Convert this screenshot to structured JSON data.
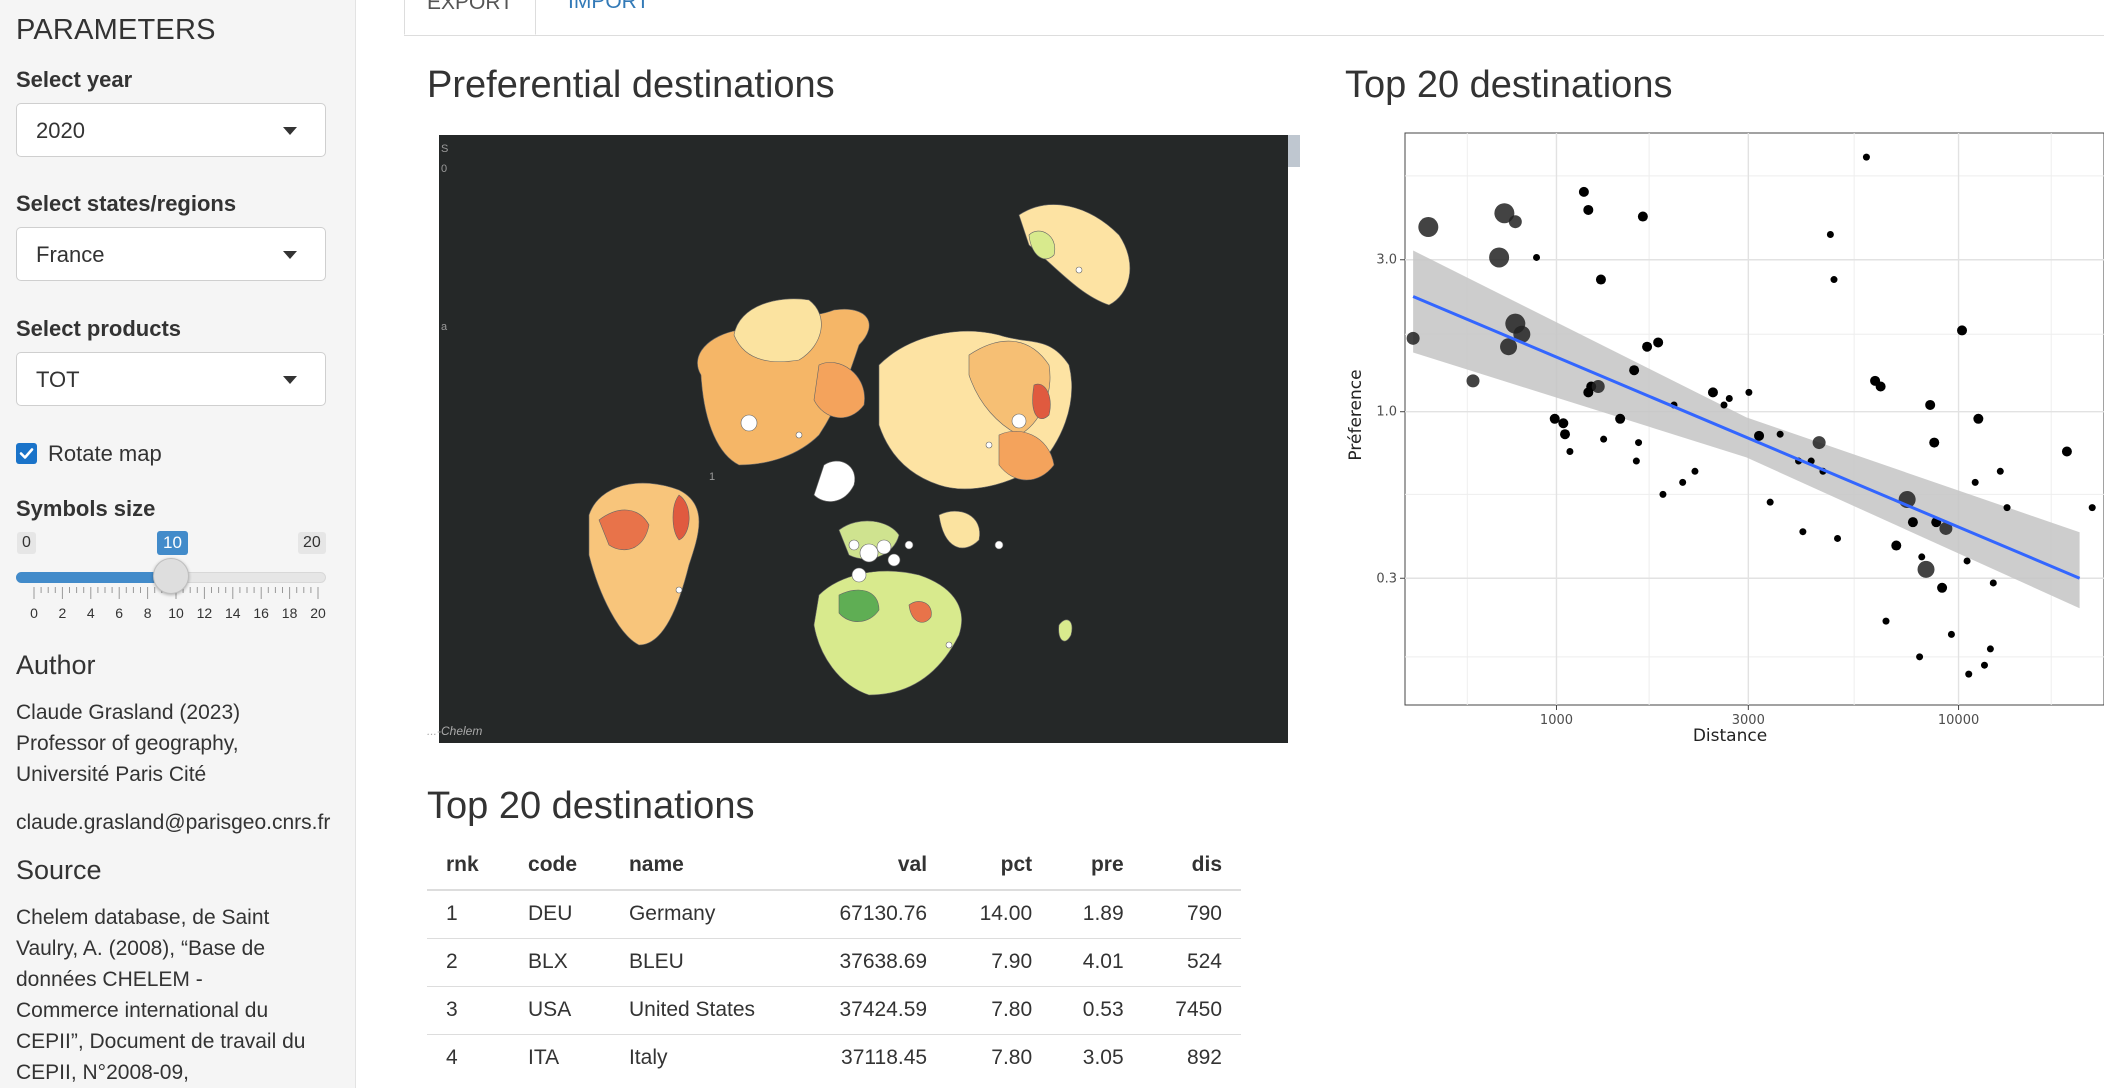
{
  "sidebar": {
    "title": "PARAMETERS",
    "year_label": "Select year",
    "year_value": "2020",
    "states_label": "Select states/regions",
    "states_value": "France",
    "products_label": "Select products",
    "products_value": "TOT",
    "rotate_label": "Rotate map",
    "rotate_checked": true,
    "symbols_label": "Symbols size",
    "slider": {
      "min": "0",
      "max": "20",
      "value": "10",
      "ticks": [
        "0",
        "2",
        "4",
        "6",
        "8",
        "10",
        "12",
        "14",
        "16",
        "18",
        "20"
      ]
    },
    "author_title": "Author",
    "author_lines": [
      "Claude Grasland (2023)",
      "Professor of geography,",
      "Université Paris Cité"
    ],
    "email": "claude.grasland@parisgeo.cnrs.fr",
    "source_title": "Source",
    "source_lines": [
      "Chelem database, de Saint",
      "Vaulry, A. (2008), “Base de",
      "données CHELEM -",
      "Commerce international du",
      "CEPII”, Document de travail du",
      "CEPII, N°2008-09,"
    ]
  },
  "tabs": [
    "EXPORT",
    "IMPORT"
  ],
  "map_section": {
    "title": "Preferential destinations",
    "credit": "...-Chelem",
    "fragments": [
      "S",
      "0",
      "a",
      "1"
    ]
  },
  "scatter_section": {
    "title": "Top 20 destinations"
  },
  "table_section": {
    "title": "Top 20 destinations",
    "columns": [
      "rnk",
      "code",
      "name",
      "val",
      "pct",
      "pre",
      "dis"
    ],
    "rows": [
      [
        "1",
        "DEU",
        "Germany",
        "67130.76",
        "14.00",
        "1.89",
        "790"
      ],
      [
        "2",
        "BLX",
        "BLEU",
        "37638.69",
        "7.90",
        "4.01",
        "524"
      ],
      [
        "3",
        "USA",
        "United States",
        "37424.59",
        "7.80",
        "0.53",
        "7450"
      ],
      [
        "4",
        "ITA",
        "Italy",
        "37118.45",
        "7.80",
        "3.05",
        "892"
      ]
    ]
  },
  "chart_data": {
    "type": "scatter",
    "title": "Top 20 destinations",
    "xlabel": "Distance",
    "ylabel": "Préference",
    "x_scale": "log",
    "y_scale": "log",
    "x_ticks": [
      1000,
      3000,
      10000
    ],
    "x_tick_labels": [
      "1000",
      "3000",
      "10000"
    ],
    "y_ticks": [
      0.3,
      1.0,
      3.0
    ],
    "y_tick_labels": [
      "0.3",
      "1.0",
      "3.0"
    ],
    "xlim": [
      420,
      23000
    ],
    "ylim": [
      0.12,
      7.5
    ],
    "grid": true,
    "trend": {
      "type": "linear-log",
      "x": [
        440,
        20000
      ],
      "y": [
        2.3,
        0.3
      ],
      "band_color": "#c4c4c4",
      "line_color": "#3366ff"
    },
    "points": [
      {
        "x": 440,
        "y": 1.7,
        "s": 3
      },
      {
        "x": 480,
        "y": 3.8,
        "s": 5
      },
      {
        "x": 620,
        "y": 1.25,
        "s": 3
      },
      {
        "x": 790,
        "y": 1.89,
        "s": 5
      },
      {
        "x": 720,
        "y": 3.05,
        "s": 5
      },
      {
        "x": 742,
        "y": 4.2,
        "s": 5
      },
      {
        "x": 790,
        "y": 3.95,
        "s": 3
      },
      {
        "x": 760,
        "y": 1.6,
        "s": 4
      },
      {
        "x": 1200,
        "y": 4.3,
        "s": 2
      },
      {
        "x": 1170,
        "y": 4.9,
        "s": 2
      },
      {
        "x": 1290,
        "y": 2.6,
        "s": 2
      },
      {
        "x": 1640,
        "y": 4.1,
        "s": 2
      },
      {
        "x": 820,
        "y": 1.75,
        "s": 4
      },
      {
        "x": 892,
        "y": 3.05,
        "s": 1
      },
      {
        "x": 990,
        "y": 0.95,
        "s": 2
      },
      {
        "x": 1040,
        "y": 0.92,
        "s": 2
      },
      {
        "x": 1080,
        "y": 0.75,
        "s": 1
      },
      {
        "x": 1050,
        "y": 0.85,
        "s": 2
      },
      {
        "x": 1200,
        "y": 1.15,
        "s": 2
      },
      {
        "x": 1220,
        "y": 1.2,
        "s": 2
      },
      {
        "x": 1270,
        "y": 1.2,
        "s": 3
      },
      {
        "x": 1310,
        "y": 0.82,
        "s": 1
      },
      {
        "x": 1440,
        "y": 0.95,
        "s": 2
      },
      {
        "x": 1560,
        "y": 1.35,
        "s": 2
      },
      {
        "x": 1600,
        "y": 0.8,
        "s": 1
      },
      {
        "x": 1680,
        "y": 1.6,
        "s": 2
      },
      {
        "x": 1790,
        "y": 1.65,
        "s": 2
      },
      {
        "x": 1580,
        "y": 0.7,
        "s": 1
      },
      {
        "x": 1960,
        "y": 1.05,
        "s": 1
      },
      {
        "x": 1840,
        "y": 0.55,
        "s": 1
      },
      {
        "x": 2060,
        "y": 0.6,
        "s": 1
      },
      {
        "x": 2210,
        "y": 0.65,
        "s": 1
      },
      {
        "x": 2450,
        "y": 1.15,
        "s": 2
      },
      {
        "x": 2690,
        "y": 1.1,
        "s": 1
      },
      {
        "x": 2610,
        "y": 1.05,
        "s": 1
      },
      {
        "x": 3010,
        "y": 1.15,
        "s": 1
      },
      {
        "x": 3190,
        "y": 0.84,
        "s": 2
      },
      {
        "x": 3400,
        "y": 0.52,
        "s": 1
      },
      {
        "x": 3600,
        "y": 0.85,
        "s": 1
      },
      {
        "x": 4000,
        "y": 0.7,
        "s": 1
      },
      {
        "x": 4500,
        "y": 0.8,
        "s": 3
      },
      {
        "x": 4600,
        "y": 0.65,
        "s": 1
      },
      {
        "x": 4800,
        "y": 3.6,
        "s": 1
      },
      {
        "x": 4900,
        "y": 2.6,
        "s": 1
      },
      {
        "x": 5000,
        "y": 0.4,
        "s": 1
      },
      {
        "x": 4100,
        "y": 0.42,
        "s": 1
      },
      {
        "x": 4300,
        "y": 0.7,
        "s": 1
      },
      {
        "x": 5900,
        "y": 6.3,
        "s": 1
      },
      {
        "x": 6200,
        "y": 1.25,
        "s": 2
      },
      {
        "x": 6400,
        "y": 1.2,
        "s": 2
      },
      {
        "x": 6600,
        "y": 0.22,
        "s": 1
      },
      {
        "x": 7000,
        "y": 0.38,
        "s": 2
      },
      {
        "x": 7450,
        "y": 0.53,
        "s": 4
      },
      {
        "x": 7700,
        "y": 0.45,
        "s": 2
      },
      {
        "x": 8100,
        "y": 0.35,
        "s": 1
      },
      {
        "x": 8300,
        "y": 0.32,
        "s": 4
      },
      {
        "x": 8500,
        "y": 1.05,
        "s": 2
      },
      {
        "x": 8700,
        "y": 0.8,
        "s": 2
      },
      {
        "x": 8800,
        "y": 0.45,
        "s": 2
      },
      {
        "x": 9300,
        "y": 0.43,
        "s": 3
      },
      {
        "x": 9100,
        "y": 0.28,
        "s": 2
      },
      {
        "x": 9600,
        "y": 0.2,
        "s": 1
      },
      {
        "x": 10200,
        "y": 1.8,
        "s": 2
      },
      {
        "x": 10500,
        "y": 0.34,
        "s": 1
      },
      {
        "x": 11000,
        "y": 0.6,
        "s": 1
      },
      {
        "x": 11200,
        "y": 0.95,
        "s": 2
      },
      {
        "x": 11600,
        "y": 0.16,
        "s": 1
      },
      {
        "x": 12000,
        "y": 0.18,
        "s": 1
      },
      {
        "x": 12200,
        "y": 0.29,
        "s": 1
      },
      {
        "x": 10600,
        "y": 0.15,
        "s": 1
      },
      {
        "x": 8000,
        "y": 0.17,
        "s": 1
      },
      {
        "x": 13200,
        "y": 0.5,
        "s": 1
      },
      {
        "x": 12700,
        "y": 0.65,
        "s": 1
      },
      {
        "x": 18600,
        "y": 0.75,
        "s": 2
      },
      {
        "x": 21500,
        "y": 0.5,
        "s": 1
      }
    ]
  }
}
